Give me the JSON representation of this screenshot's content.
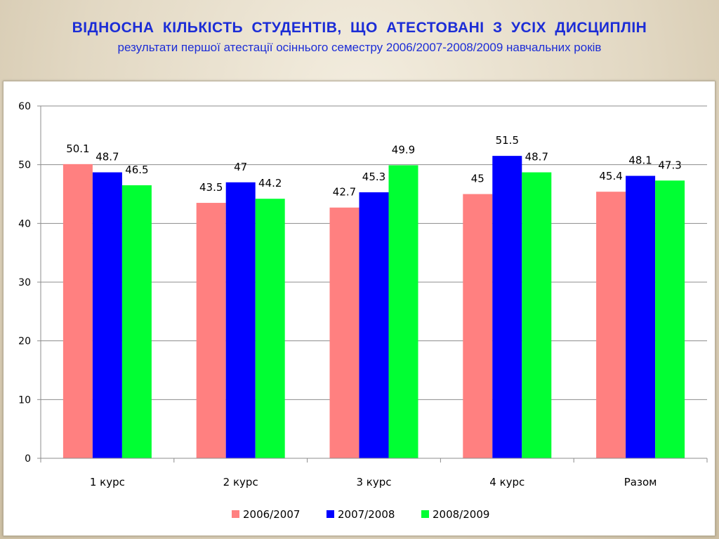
{
  "header": {
    "title": "ВІДНОСНА  КІЛЬКІСТЬ  СТУДЕНТІВ,  ЩО  АТЕСТОВАНІ  З  УСІХ ДИСЦИПЛІН",
    "subtitle": "результати першої атестації осіннього семестру 2006/2007-2008/2009 навчальних років"
  },
  "chart_data": {
    "type": "bar",
    "categories": [
      "1 курс",
      "2 курс",
      "3 курс",
      "4 курс",
      "Разом"
    ],
    "series": [
      {
        "name": "2006/2007",
        "color": "#ff8080",
        "values": [
          50.1,
          43.5,
          42.7,
          45,
          45.4
        ]
      },
      {
        "name": "2007/2008",
        "color": "#0000ff",
        "values": [
          48.7,
          47,
          45.3,
          51.5,
          48.1
        ]
      },
      {
        "name": "2008/2009",
        "color": "#00ff33",
        "values": [
          46.5,
          44.2,
          49.9,
          48.7,
          47.3
        ]
      }
    ],
    "ylim": [
      0,
      60
    ],
    "yticks": [
      0,
      10,
      20,
      30,
      40,
      50,
      60
    ],
    "grid": true,
    "legend": "bottom",
    "xlabel": "",
    "ylabel": ""
  }
}
